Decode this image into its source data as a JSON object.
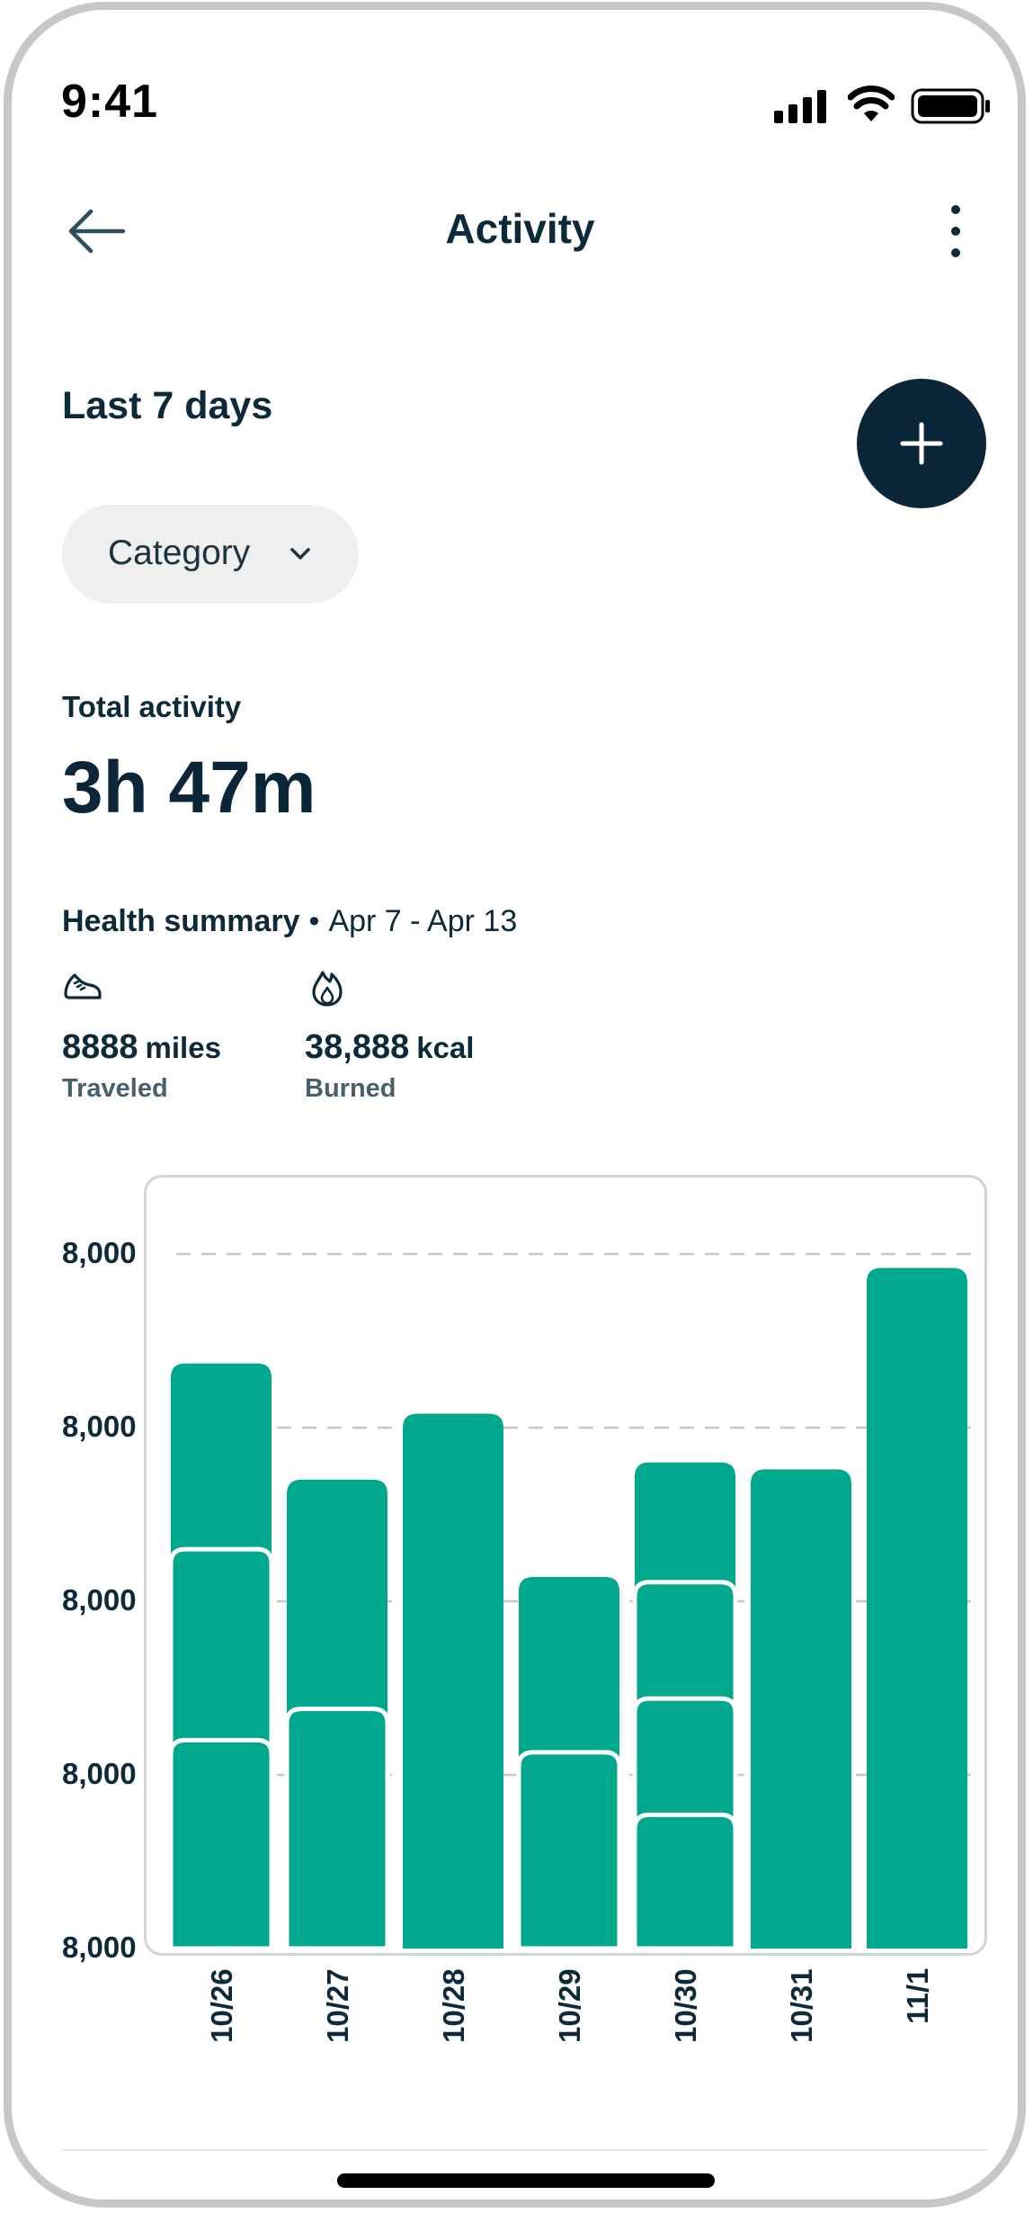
{
  "status_bar": {
    "time": "9:41"
  },
  "header": {
    "title": "Activity",
    "back_icon": "arrow-left-icon",
    "more_icon": "more-vertical-icon"
  },
  "range": {
    "title": "Last 7 days"
  },
  "add_button": {
    "icon": "plus-icon",
    "color": "#0b2638"
  },
  "filter": {
    "label": "Category",
    "icon": "chevron-down-icon"
  },
  "total": {
    "label": "Total activity",
    "value": "3h 47m"
  },
  "summary": {
    "title": "Health summary",
    "separator": "•",
    "date_range": "Apr 7 - Apr 13",
    "stats": [
      {
        "icon": "sneaker-icon",
        "value": "8888",
        "unit": "miles",
        "caption": "Traveled"
      },
      {
        "icon": "flame-icon",
        "value": "38,888",
        "unit": "kcal",
        "caption": "Burned"
      }
    ]
  },
  "colors": {
    "bar": "#00a88e",
    "text": "#0d2a3a",
    "grid": "#c8c8c8"
  },
  "chart_data": {
    "type": "bar",
    "stacked": true,
    "y_tick_labels": [
      "8,000",
      "8,000",
      "8,000",
      "8,000",
      "8,000"
    ],
    "categories": [
      "10/26",
      "10/27",
      "10/28",
      "10/29",
      "10/30",
      "10/31",
      "11/1"
    ],
    "segments": [
      [
        1.2,
        1.1,
        1.07
      ],
      [
        1.38,
        1.32
      ],
      [
        3.08
      ],
      [
        1.13,
        1.01
      ],
      [
        0.77,
        0.67,
        0.67,
        0.69
      ],
      [
        2.76
      ],
      [
        3.92
      ]
    ],
    "grid": "dashed",
    "legend": "none"
  }
}
